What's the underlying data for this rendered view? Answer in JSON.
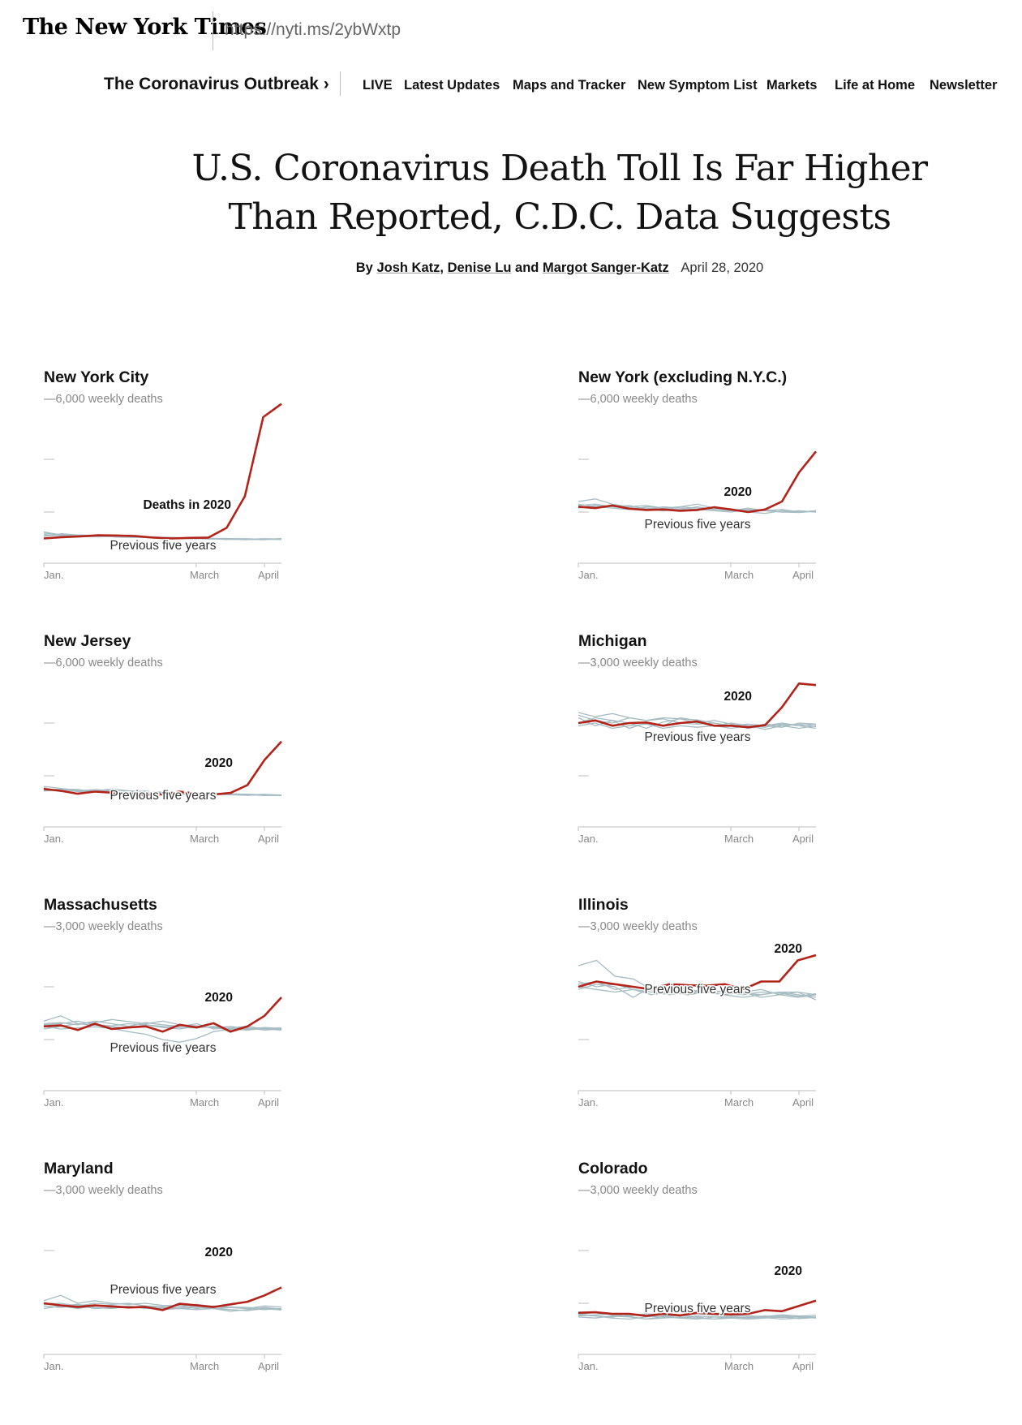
{
  "masthead": {
    "logo": "The New York Times",
    "logo_icon": "nyt-blackletter-logo",
    "short_url": "https://nyti.ms/2ybWxtp"
  },
  "nav": {
    "section": "The Coronavirus Outbreak ›",
    "live": "LIVE",
    "items": [
      "Latest Updates",
      "Maps and Tracker",
      "New Symptom List",
      "Markets",
      "Life at Home",
      "Newsletter"
    ]
  },
  "article": {
    "headline_line1": "U.S. Coronavirus Death Toll Is Far Higher",
    "headline_line2": "Than Reported, C.D.C. Data Suggests",
    "byline_prefix": "By",
    "authors": [
      "Josh Katz",
      "Denise Lu",
      "Margot Sanger-Katz"
    ],
    "sep1": ",",
    "sep2": "and",
    "date": "April 28, 2020"
  },
  "colors": {
    "series_2020": "#b2231a",
    "previous_years": "#a6bcc3",
    "axis": "#bdbdbd",
    "tick_text": "#888888"
  },
  "chart_data": [
    {
      "type": "line",
      "title": "New York City",
      "y_top_label": "—6,000 weekly deaths",
      "ylim": [
        0,
        6000
      ],
      "y_ticks": [
        2000,
        4000,
        6000
      ],
      "x_ticks": [
        "Jan.",
        "March",
        "April"
      ],
      "series_2020_label": "Deaths in 2020",
      "previous_label": "Previous five years",
      "series": [
        {
          "name": "Deaths in 2020",
          "values": [
            1000,
            1050,
            1080,
            1120,
            1110,
            1090,
            1030,
            1000,
            1020,
            1030,
            1400,
            2600,
            5600,
            6100
          ]
        },
        {
          "values": [
            1200,
            1150,
            1080,
            1090,
            1060,
            1050,
            1020,
            1010,
            1000,
            990,
            970,
            960,
            990,
            980
          ]
        },
        {
          "values": [
            1100,
            1180,
            1120,
            1080,
            1100,
            1070,
            1060,
            1020,
            1000,
            1010,
            980,
            990,
            970,
            960
          ]
        },
        {
          "values": [
            1250,
            1120,
            1070,
            1060,
            1080,
            1060,
            1030,
            1040,
            1010,
            1000,
            1000,
            980,
            960,
            990
          ]
        },
        {
          "values": [
            1150,
            1100,
            1130,
            1100,
            1050,
            1040,
            1050,
            1030,
            1000,
            980,
            990,
            950,
            980,
            970
          ]
        },
        {
          "values": [
            1080,
            1140,
            1060,
            1110,
            1090,
            1080,
            1020,
            990,
            1010,
            1000,
            960,
            970,
            950,
            1000
          ]
        }
      ]
    },
    {
      "type": "line",
      "title": "New York (excluding N.Y.C.)",
      "y_top_label": "—6,000 weekly deaths",
      "ylim": [
        0,
        6000
      ],
      "y_ticks": [
        2000,
        4000,
        6000
      ],
      "x_ticks": [
        "Jan.",
        "March",
        "April"
      ],
      "series_2020_label": "2020",
      "previous_label": "Previous five years",
      "series": [
        {
          "name": "2020",
          "values": [
            2200,
            2150,
            2250,
            2130,
            2080,
            2100,
            2050,
            2080,
            2180,
            2100,
            2000,
            2100,
            2400,
            3500,
            4300
          ]
        },
        {
          "values": [
            2400,
            2500,
            2300,
            2200,
            2250,
            2150,
            2200,
            2300,
            2150,
            2100,
            2050,
            2100,
            2000,
            2050,
            2000
          ]
        },
        {
          "values": [
            2250,
            2300,
            2200,
            2150,
            2100,
            2200,
            2150,
            2100,
            2050,
            2000,
            2100,
            2050,
            2100,
            2000,
            2050
          ]
        },
        {
          "values": [
            2200,
            2150,
            2250,
            2200,
            2150,
            2100,
            2200,
            2150,
            2100,
            2050,
            2150,
            2050,
            2000,
            2050,
            2000
          ]
        },
        {
          "values": [
            2300,
            2200,
            2150,
            2100,
            2200,
            2150,
            2100,
            2050,
            2200,
            2100,
            2000,
            1950,
            2050,
            2000,
            2050
          ]
        },
        {
          "values": [
            2150,
            2250,
            2200,
            2250,
            2100,
            2050,
            2100,
            2200,
            2100,
            2050,
            2100,
            2050,
            2000,
            1980,
            2030
          ]
        }
      ]
    },
    {
      "type": "line",
      "title": "New Jersey",
      "y_top_label": "—6,000 weekly deaths",
      "ylim": [
        0,
        6000
      ],
      "y_ticks": [
        2000,
        4000,
        6000
      ],
      "x_ticks": [
        "Jan.",
        "March",
        "April"
      ],
      "series_2020_label": "2020",
      "previous_label": "Previous five years",
      "series": [
        {
          "name": "2020",
          "values": [
            1500,
            1430,
            1320,
            1400,
            1360,
            1300,
            1280,
            1300,
            1400,
            1330,
            1290,
            1350,
            1650,
            2600,
            3300
          ]
        },
        {
          "values": [
            1600,
            1520,
            1450,
            1420,
            1500,
            1430,
            1400,
            1380,
            1360,
            1340,
            1300,
            1320,
            1300,
            1280,
            1270
          ]
        },
        {
          "values": [
            1450,
            1500,
            1480,
            1400,
            1380,
            1420,
            1350,
            1330,
            1380,
            1300,
            1320,
            1280,
            1300,
            1270,
            1250
          ]
        },
        {
          "values": [
            1500,
            1460,
            1420,
            1480,
            1430,
            1400,
            1360,
            1350,
            1330,
            1320,
            1300,
            1290,
            1270,
            1300,
            1260
          ]
        },
        {
          "values": [
            1550,
            1400,
            1450,
            1420,
            1400,
            1380,
            1420,
            1330,
            1300,
            1320,
            1310,
            1280,
            1260,
            1290,
            1270
          ]
        },
        {
          "values": [
            1420,
            1480,
            1400,
            1390,
            1460,
            1350,
            1330,
            1370,
            1320,
            1280,
            1290,
            1300,
            1280,
            1250,
            1260
          ]
        }
      ]
    },
    {
      "type": "line",
      "title": "Michigan",
      "y_top_label": "—3,000 weekly deaths",
      "ylim": [
        0,
        3000
      ],
      "y_ticks": [
        1000,
        2000,
        3000
      ],
      "x_ticks": [
        "Jan.",
        "March",
        "April"
      ],
      "series_2020_label": "2020",
      "previous_label": "Previous five years",
      "series": [
        {
          "name": "2020",
          "values": [
            2000,
            2050,
            1950,
            2000,
            2010,
            1950,
            2000,
            2030,
            1950,
            1950,
            1920,
            1960,
            2300,
            2750,
            2720
          ]
        },
        {
          "values": [
            2200,
            2120,
            2180,
            2100,
            2050,
            2100,
            2080,
            2060,
            2000,
            1950,
            1980,
            1950,
            1920,
            2000,
            1980
          ]
        },
        {
          "values": [
            2100,
            1950,
            2050,
            2000,
            1900,
            2020,
            2080,
            2000,
            2050,
            1980,
            1900,
            1950,
            2000,
            1950,
            1980
          ]
        },
        {
          "values": [
            1950,
            2000,
            1900,
            1950,
            1980,
            1900,
            1950,
            1920,
            1950,
            1900,
            1950,
            1880,
            1950,
            1900,
            1950
          ]
        },
        {
          "values": [
            2150,
            2050,
            2000,
            2100,
            2050,
            2080,
            2000,
            1980,
            2000,
            1950,
            1920,
            1980,
            1950,
            1980,
            1930
          ]
        },
        {
          "values": [
            2000,
            2100,
            2050,
            1900,
            2000,
            1950,
            2100,
            2050,
            1950,
            2000,
            1950,
            1920,
            1980,
            1950,
            1900
          ]
        }
      ]
    },
    {
      "type": "line",
      "title": "Massachusetts",
      "y_top_label": "—3,000 weekly deaths",
      "ylim": [
        0,
        3000
      ],
      "y_ticks": [
        1000,
        2000,
        3000
      ],
      "x_ticks": [
        "Jan.",
        "March",
        "April"
      ],
      "series_2020_label": "2020",
      "previous_label": "Previous five years",
      "series": [
        {
          "name": "2020",
          "values": [
            1250,
            1270,
            1180,
            1300,
            1200,
            1230,
            1250,
            1150,
            1280,
            1230,
            1310,
            1150,
            1250,
            1450,
            1800
          ]
        },
        {
          "values": [
            1350,
            1450,
            1300,
            1320,
            1380,
            1340,
            1300,
            1350,
            1280,
            1260,
            1220,
            1250,
            1200,
            1230,
            1210
          ]
        },
        {
          "values": [
            1300,
            1320,
            1280,
            1350,
            1300,
            1250,
            1320,
            1280,
            1250,
            1300,
            1200,
            1220,
            1250,
            1200,
            1180
          ]
        },
        {
          "values": [
            1250,
            1200,
            1220,
            1240,
            1210,
            1150,
            1100,
            1000,
            950,
            1020,
            1150,
            1200,
            1180,
            1210,
            1220
          ]
        },
        {
          "values": [
            1280,
            1300,
            1350,
            1280,
            1260,
            1300,
            1280,
            1250,
            1230,
            1220,
            1250,
            1200,
            1220,
            1180,
            1200
          ]
        },
        {
          "values": [
            1200,
            1250,
            1300,
            1270,
            1240,
            1220,
            1280,
            1230,
            1200,
            1250,
            1230,
            1180,
            1200,
            1220,
            1190
          ]
        }
      ]
    },
    {
      "type": "line",
      "title": "Illinois",
      "y_top_label": "—3,000 weekly deaths",
      "ylim": [
        0,
        3000
      ],
      "y_ticks": [
        1000,
        2000,
        3000
      ],
      "x_ticks": [
        "Jan.",
        "March",
        "April"
      ],
      "series_2020_label": "2020",
      "previous_label": "Previous five years",
      "series": [
        {
          "name": "2020",
          "values": [
            2000,
            2100,
            2050,
            2000,
            1950,
            2050,
            2030,
            2020,
            2050,
            1950,
            2100,
            2100,
            2500,
            2600
          ]
        },
        {
          "values": [
            2400,
            2500,
            2200,
            2150,
            1950,
            1900,
            1850,
            1900,
            1850,
            1800,
            1850,
            1900,
            1900,
            1850
          ]
        },
        {
          "values": [
            2100,
            2000,
            2050,
            1950,
            1850,
            1900,
            1950,
            1900,
            1850,
            1900,
            1950,
            1850,
            1800,
            1850
          ]
        },
        {
          "values": [
            1950,
            2050,
            2000,
            1800,
            2000,
            2050,
            1950,
            1900,
            1850,
            1900,
            1800,
            1850,
            1900,
            1750
          ]
        },
        {
          "values": [
            2000,
            1950,
            1900,
            1950,
            1900,
            1850,
            1900,
            1920,
            1900,
            1850,
            1900,
            1880,
            1820,
            1870
          ]
        },
        {
          "values": [
            2050,
            2100,
            1950,
            2000,
            1950,
            1900,
            1850,
            1950,
            1900,
            1880,
            1850,
            1900,
            1850,
            1800
          ]
        }
      ]
    },
    {
      "type": "line",
      "title": "Maryland",
      "y_top_label": "—3,000 weekly deaths",
      "ylim": [
        0,
        3000
      ],
      "y_ticks": [
        1000,
        2000,
        3000
      ],
      "x_ticks": [
        "Jan.",
        "March",
        "April"
      ],
      "series_2020_label": "2020",
      "previous_label": "Previous five years",
      "series": [
        {
          "name": "2020",
          "values": [
            1000,
            960,
            930,
            960,
            940,
            920,
            930,
            870,
            990,
            960,
            930,
            980,
            1030,
            1150,
            1300
          ]
        },
        {
          "values": [
            1050,
            1150,
            1000,
            1050,
            1000,
            980,
            1000,
            960,
            950,
            980,
            940,
            920,
            900,
            950,
            930
          ]
        },
        {
          "values": [
            980,
            1000,
            950,
            1000,
            980,
            1000,
            950,
            940,
            960,
            900,
            950,
            930,
            920,
            900,
            880
          ]
        },
        {
          "values": [
            950,
            920,
            960,
            900,
            920,
            950,
            900,
            920,
            900,
            880,
            900,
            850,
            880,
            920,
            890
          ]
        },
        {
          "values": [
            1000,
            950,
            900,
            950,
            960,
            930,
            950,
            900,
            920,
            950,
            900,
            920,
            900,
            880,
            900
          ]
        },
        {
          "values": [
            900,
            950,
            980,
            920,
            900,
            940,
            920,
            880,
            900,
            920,
            900,
            880,
            860,
            900,
            870
          ]
        }
      ]
    },
    {
      "type": "line",
      "title": "Colorado",
      "y_top_label": "—3,000 weekly deaths",
      "ylim": [
        0,
        3000
      ],
      "y_ticks": [
        1000,
        2000,
        3000
      ],
      "x_ticks": [
        "Jan.",
        "March",
        "April"
      ],
      "series_2020_label": "2020",
      "previous_label": "Previous five years",
      "series": [
        {
          "name": "2020",
          "values": [
            820,
            830,
            800,
            800,
            760,
            800,
            770,
            820,
            800,
            790,
            800,
            870,
            850,
            950,
            1050
          ]
        },
        {
          "values": [
            800,
            820,
            780,
            760,
            800,
            780,
            760,
            800,
            780,
            770,
            760,
            750,
            780,
            760,
            770
          ]
        },
        {
          "values": [
            760,
            780,
            800,
            750,
            700,
            750,
            770,
            740,
            700,
            720,
            740,
            760,
            730,
            750,
            740
          ]
        },
        {
          "values": [
            780,
            760,
            740,
            780,
            760,
            740,
            720,
            760,
            740,
            750,
            730,
            740,
            760,
            740,
            720
          ]
        },
        {
          "values": [
            740,
            720,
            760,
            740,
            700,
            720,
            740,
            720,
            700,
            740,
            720,
            730,
            700,
            720,
            740
          ]
        },
        {
          "values": [
            800,
            760,
            720,
            700,
            740,
            760,
            720,
            700,
            740,
            720,
            700,
            720,
            740,
            710,
            730
          ]
        }
      ]
    }
  ]
}
